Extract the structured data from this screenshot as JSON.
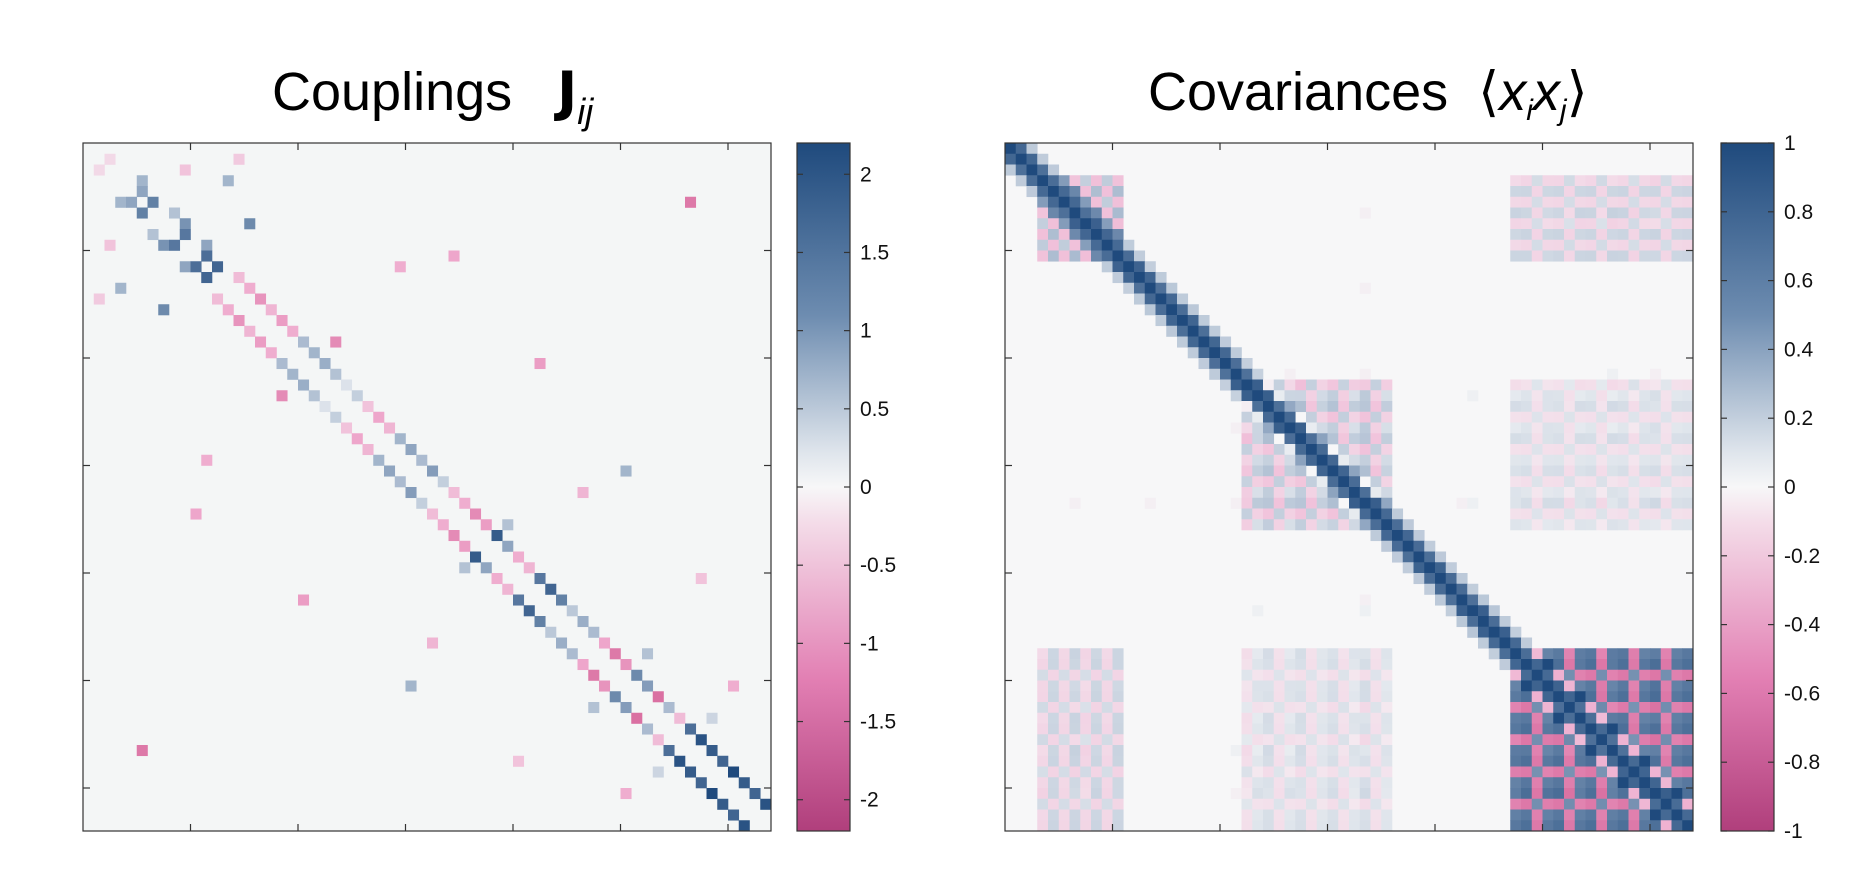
{
  "panels": [
    {
      "title_text": "Couplings",
      "title_symbol": "J",
      "title_subscript": "ij",
      "colorbar_ticks": [
        "2",
        "1.5",
        "1",
        "0.5",
        "0",
        "-0.5",
        "-1",
        "-1.5",
        "-2"
      ],
      "colorbar_values": [
        2,
        1.5,
        1,
        0.5,
        0,
        -0.5,
        -1,
        -1.5,
        -2
      ]
    },
    {
      "title_text": "Covariances",
      "title_math": "⟨x_i x_j⟩",
      "colorbar_ticks": [
        "1",
        "0.8",
        "0.6",
        "0.4",
        "0.2",
        "0",
        "-0.2",
        "-0.4",
        "-0.6",
        "-0.8",
        "-1"
      ],
      "colorbar_values": [
        1,
        0.8,
        0.6,
        0.4,
        0.2,
        0,
        -0.2,
        -0.4,
        -0.6,
        -0.8,
        -1
      ]
    }
  ],
  "colors": {
    "positive_max": "#1f4a7d",
    "mid": "#f2f4f5",
    "negative_max": "#d1488c"
  },
  "chart_data": [
    {
      "type": "heatmap",
      "title": "Couplings J_ij",
      "n": 64,
      "vmin": -2.2,
      "vmax": 2.2,
      "structure": "sparse, mostly near-diagonal couplings; off-diagonal entries mostly zero",
      "entries": [
        [
          1,
          2,
          -0.4
        ],
        [
          3,
          5,
          1.0
        ],
        [
          4,
          5,
          1.2
        ],
        [
          5,
          6,
          1.6
        ],
        [
          6,
          8,
          0.8
        ],
        [
          7,
          9,
          1.4
        ],
        [
          8,
          9,
          1.7
        ],
        [
          9,
          11,
          1.2
        ],
        [
          10,
          11,
          1.8
        ],
        [
          11,
          12,
          1.9
        ],
        [
          12,
          14,
          -0.8
        ],
        [
          13,
          15,
          -1.0
        ],
        [
          14,
          16,
          -1.3
        ],
        [
          15,
          17,
          -0.9
        ],
        [
          16,
          18,
          -1.2
        ],
        [
          17,
          19,
          -1.0
        ],
        [
          18,
          20,
          0.9
        ],
        [
          19,
          21,
          1.0
        ],
        [
          20,
          22,
          1.1
        ],
        [
          21,
          23,
          0.8
        ],
        [
          22,
          24,
          0.3
        ],
        [
          23,
          25,
          0.6
        ],
        [
          24,
          26,
          -0.7
        ],
        [
          25,
          27,
          -1.1
        ],
        [
          26,
          28,
          -0.9
        ],
        [
          27,
          29,
          1.0
        ],
        [
          28,
          30,
          1.2
        ],
        [
          29,
          31,
          0.9
        ],
        [
          30,
          32,
          1.3
        ],
        [
          31,
          33,
          0.6
        ],
        [
          32,
          34,
          -0.8
        ],
        [
          33,
          35,
          -1.0
        ],
        [
          34,
          36,
          -1.4
        ],
        [
          35,
          37,
          -1.2
        ],
        [
          36,
          38,
          2.0
        ],
        [
          37,
          39,
          1.2
        ],
        [
          38,
          40,
          -1.0
        ],
        [
          39,
          41,
          -0.9
        ],
        [
          40,
          42,
          1.7
        ],
        [
          41,
          43,
          1.9
        ],
        [
          42,
          44,
          1.6
        ],
        [
          43,
          45,
          0.7
        ],
        [
          44,
          46,
          1.1
        ],
        [
          45,
          47,
          0.9
        ],
        [
          46,
          48,
          -1.1
        ],
        [
          47,
          49,
          -1.6
        ],
        [
          48,
          50,
          -1.3
        ],
        [
          49,
          51,
          1.5
        ],
        [
          50,
          52,
          1.3
        ],
        [
          51,
          53,
          -1.7
        ],
        [
          52,
          54,
          0.9
        ],
        [
          53,
          55,
          -0.8
        ],
        [
          54,
          56,
          1.8
        ],
        [
          55,
          57,
          2.1
        ],
        [
          56,
          58,
          2.0
        ],
        [
          57,
          59,
          1.9
        ],
        [
          58,
          60,
          2.2
        ],
        [
          59,
          61,
          2.0
        ],
        [
          60,
          62,
          1.9
        ],
        [
          61,
          63,
          2.1
        ],
        [
          1,
          14,
          -0.6
        ],
        [
          3,
          13,
          1.0
        ],
        [
          5,
          56,
          -1.6
        ],
        [
          7,
          15,
          1.5
        ],
        [
          2,
          9,
          -0.7
        ],
        [
          10,
          34,
          -1.1
        ],
        [
          11,
          29,
          -1.0
        ],
        [
          18,
          23,
          -1.4
        ],
        [
          20,
          42,
          -1.2
        ],
        [
          30,
          50,
          1.0
        ],
        [
          32,
          46,
          -0.9
        ],
        [
          35,
          39,
          0.8
        ],
        [
          40,
          57,
          -0.7
        ],
        [
          47,
          52,
          0.8
        ],
        [
          50,
          60,
          -1.0
        ],
        [
          53,
          58,
          0.5
        ]
      ]
    },
    {
      "type": "heatmap",
      "title": "Covariances ⟨x_i x_j⟩",
      "n": 64,
      "vmin": -1,
      "vmax": 1,
      "structure": "dense block-structured covariance matrix; unit diagonal; large correlated block in lower-right (indices ~47-63) and blocks near indices 3-10, 22-35"
    }
  ]
}
